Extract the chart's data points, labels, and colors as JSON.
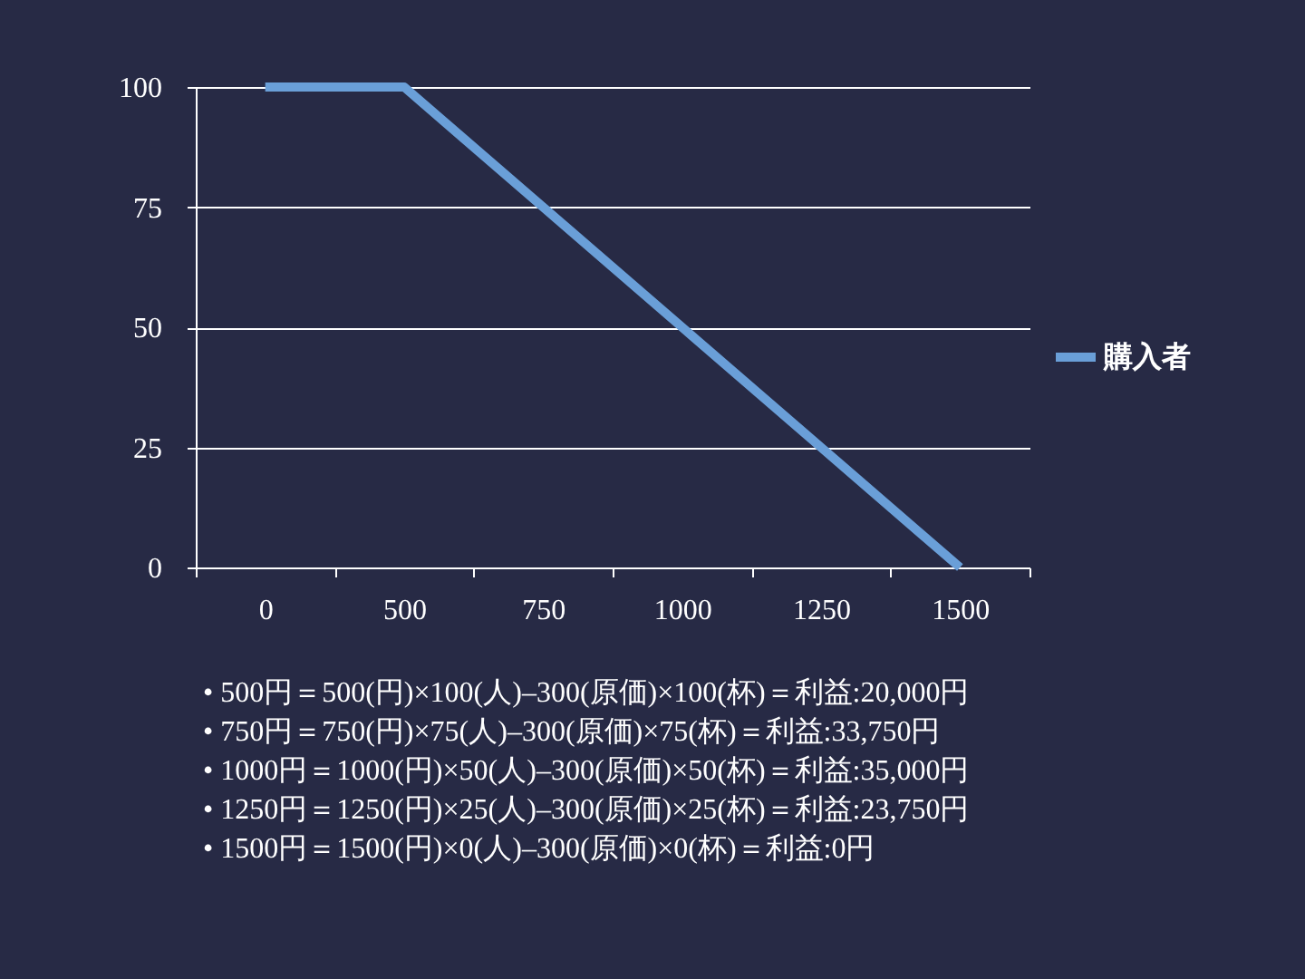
{
  "chart_data": {
    "type": "line",
    "categories": [
      "0",
      "500",
      "750",
      "1000",
      "1250",
      "1500"
    ],
    "series": [
      {
        "name": "購入者",
        "color": "#6a9fd8",
        "values": [
          100,
          100,
          75,
          50,
          25,
          0
        ]
      }
    ],
    "ylim": [
      0,
      100
    ],
    "yticks": [
      0,
      25,
      50,
      75,
      100
    ],
    "grid": "y",
    "legend": "right",
    "line_style": "solid",
    "annotations": [
      "• 500円＝500(円)×100(人)–300(原価)×100(杯)＝利益:20,000円",
      "• 750円＝750(円)×75(人)–300(原価)×75(杯)＝利益:33,750円",
      "• 1000円＝1000(円)×50(人)–300(原価)×50(杯)＝利益:35,000円",
      "• 1250円＝1250(円)×25(人)–300(原価)×25(杯)＝利益:23,750円",
      "• 1500円＝1500(円)×0(人)–300(原価)×0(杯)＝利益:0円"
    ]
  }
}
